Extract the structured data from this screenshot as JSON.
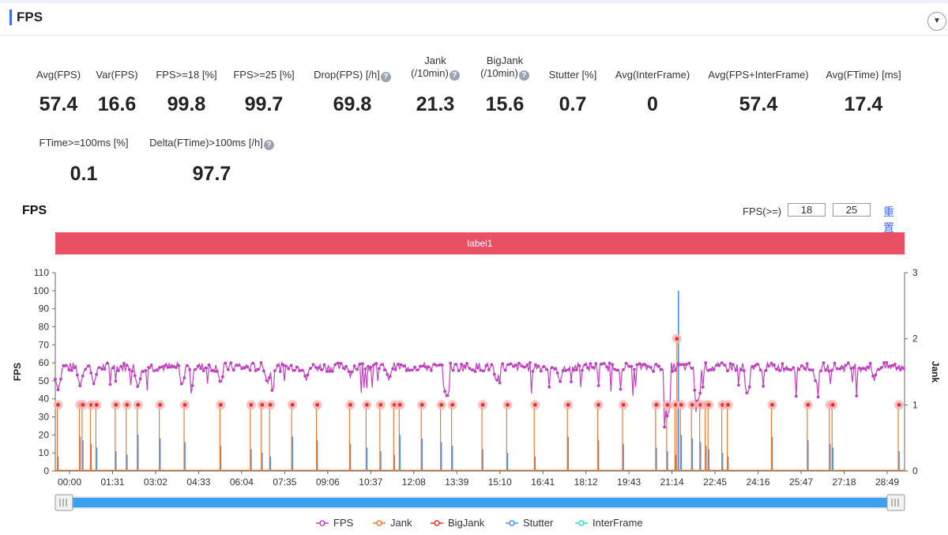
{
  "header": {
    "title": "FPS"
  },
  "metrics": [
    {
      "label": "Avg(FPS)",
      "value": "57.4",
      "help": false
    },
    {
      "label": "Var(FPS)",
      "value": "16.6",
      "help": false
    },
    {
      "label": "FPS>=18 [%]",
      "value": "99.8",
      "help": false
    },
    {
      "label": "FPS>=25 [%]",
      "value": "99.7",
      "help": false
    },
    {
      "label": "Drop(FPS) [/h]",
      "value": "69.8",
      "help": true
    },
    {
      "label": "Jank",
      "label2": "(/10min)",
      "value": "21.3",
      "help": true
    },
    {
      "label": "BigJank",
      "label2": "(/10min)",
      "value": "15.6",
      "help": true
    },
    {
      "label": "Stutter [%]",
      "value": "0.7",
      "help": false
    },
    {
      "label": "Avg(InterFrame)",
      "value": "0",
      "help": false
    },
    {
      "label": "Avg(FPS+InterFrame)",
      "value": "57.4",
      "help": false
    },
    {
      "label": "Avg(FTime) [ms]",
      "value": "17.4",
      "help": false
    },
    {
      "label": "FTime>=100ms [%]",
      "value": "0.1",
      "help": false
    },
    {
      "label": "Delta(FTime)>100ms [/h]",
      "value": "97.7",
      "help": true
    }
  ],
  "help_glyph": "?",
  "chart": {
    "title": "FPS",
    "fps_filter_label": "FPS(>=)",
    "fps_threshold_1": "18",
    "fps_threshold_2": "25",
    "reset_label": "重置",
    "band_label": "label1"
  },
  "chart_data": {
    "type": "line",
    "y_left_label": "FPS",
    "y_right_label": "Jank",
    "y_left_ticks": [
      0,
      10,
      20,
      30,
      40,
      50,
      60,
      70,
      80,
      90,
      100,
      110
    ],
    "y_right_ticks": [
      0,
      1,
      2,
      3
    ],
    "ylim_left": [
      0,
      110
    ],
    "ylim_right": [
      0,
      3
    ],
    "x_tick_labels": [
      "00:00",
      "01:31",
      "03:02",
      "04:33",
      "06:04",
      "07:35",
      "09:06",
      "10:37",
      "12:08",
      "13:39",
      "15:10",
      "16:41",
      "18:12",
      "19:43",
      "21:14",
      "22:45",
      "24:16",
      "25:47",
      "27:18",
      "28:49"
    ],
    "x_range_minutes": [
      0,
      30.8
    ],
    "fps_baseline": 57.4,
    "legend": [
      {
        "name": "FPS",
        "color": "#c23fc0"
      },
      {
        "name": "Jank",
        "color": "#f0782a"
      },
      {
        "name": "BigJank",
        "color": "#e8322c"
      },
      {
        "name": "Stutter",
        "color": "#4a8fe8"
      },
      {
        "name": "InterFrame",
        "color": "#37d3de"
      }
    ],
    "fps_dips": [
      {
        "t": 0.1,
        "fps": 45
      },
      {
        "t": 0.9,
        "fps": 47
      },
      {
        "t": 1.4,
        "fps": 48
      },
      {
        "t": 3.0,
        "fps": 46
      },
      {
        "t": 4.6,
        "fps": 47
      },
      {
        "t": 6.0,
        "fps": 48
      },
      {
        "t": 7.7,
        "fps": 48
      },
      {
        "t": 9.1,
        "fps": 50
      },
      {
        "t": 10.7,
        "fps": 52
      },
      {
        "t": 12.1,
        "fps": 50
      },
      {
        "t": 14.2,
        "fps": 40
      },
      {
        "t": 16.0,
        "fps": 49
      },
      {
        "t": 18.3,
        "fps": 49
      },
      {
        "t": 22.2,
        "fps": 30
      },
      {
        "t": 23.3,
        "fps": 38
      },
      {
        "t": 25.1,
        "fps": 42
      },
      {
        "t": 27.6,
        "fps": 48
      },
      {
        "t": 29.7,
        "fps": 50
      }
    ],
    "jank_events_min": [
      0.1,
      0.9,
      1.0,
      1.3,
      1.5,
      2.2,
      2.6,
      3.0,
      3.8,
      4.7,
      6.0,
      7.1,
      7.5,
      7.8,
      8.6,
      9.5,
      10.7,
      11.3,
      11.8,
      12.3,
      12.5,
      13.3,
      14.0,
      14.4,
      15.5,
      16.4,
      17.4,
      18.6,
      19.7,
      20.6,
      21.8,
      22.2,
      22.5,
      22.7,
      23.1,
      23.4,
      23.6,
      23.7,
      24.2,
      24.4,
      26.0,
      27.3,
      28.1,
      28.2,
      30.6
    ],
    "jank_marker_max": {
      "t": 22.6,
      "value": 2
    },
    "stutter_spike": {
      "t": 22.6,
      "value": 100
    }
  }
}
